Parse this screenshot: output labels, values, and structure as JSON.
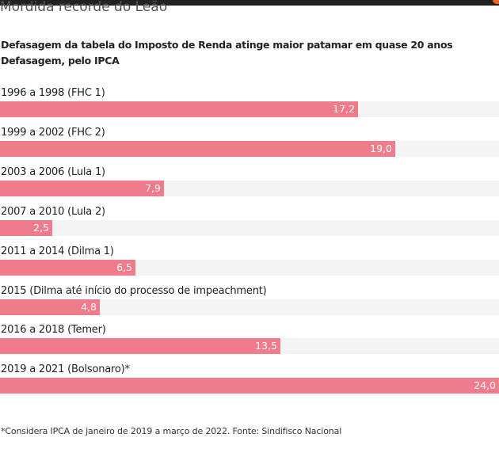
{
  "kicker": "Mordida recorde do Leão",
  "title": "Defasagem da tabela do Imposto de Renda atinge maior patamar em quase 20 anos",
  "subtitle": "Defasagem, pelo IPCA",
  "footnote": "*Considera IPCA de janeiro de 2019 a março de 2022. Fonte: Sindifisco Nacional",
  "colors": {
    "bar": "#f07b8b",
    "track": "#f3f3f3",
    "topbar": "#222222",
    "accent": "#e8682a"
  },
  "chart_data": {
    "type": "bar",
    "orientation": "horizontal",
    "categories": [
      "1996 a 1998 (FHC 1)",
      "1999 a 2002 (FHC 2)",
      "2003 a 2006 (Lula 1)",
      "2007 a 2010 (Lula 2)",
      "2011 a 2014 (Dilma 1)",
      "2015 (Dilma até início do processo de impeachment)",
      "2016 a 2018 (Temer)",
      "2019 a 2021 (Bolsonaro)*"
    ],
    "values": [
      17.2,
      19.0,
      7.9,
      2.5,
      6.5,
      4.8,
      13.5,
      24.0
    ],
    "value_labels": [
      "17,2",
      "19,0",
      "7,9",
      "2,5",
      "6,5",
      "4,8",
      "13,5",
      "24,0"
    ],
    "xlim": [
      0,
      24.0
    ],
    "grid": false,
    "legend": "none"
  }
}
